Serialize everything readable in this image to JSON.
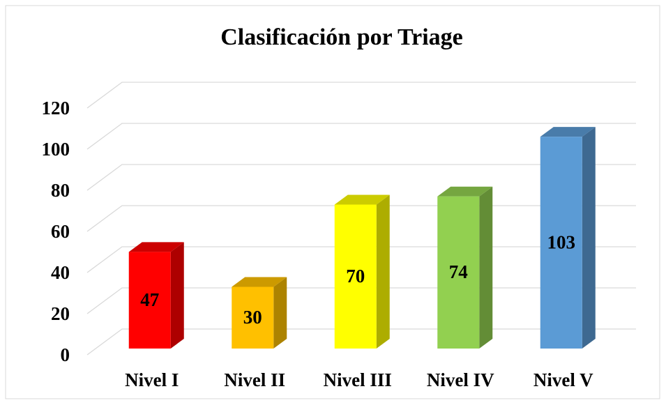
{
  "chart_data": {
    "type": "bar3d",
    "title": "Clasificación por Triage",
    "categories": [
      "Nivel I",
      "Nivel II",
      "Nivel III",
      "Nivel IV",
      "Nivel V"
    ],
    "values": [
      47,
      30,
      70,
      74,
      103
    ],
    "colors": [
      "#ff0000",
      "#ffc000",
      "#ffff00",
      "#92d050",
      "#5b9bd5"
    ],
    "ylim": [
      0,
      120
    ],
    "yticks": [
      0,
      20,
      40,
      60,
      80,
      100,
      120
    ],
    "grid": true
  }
}
